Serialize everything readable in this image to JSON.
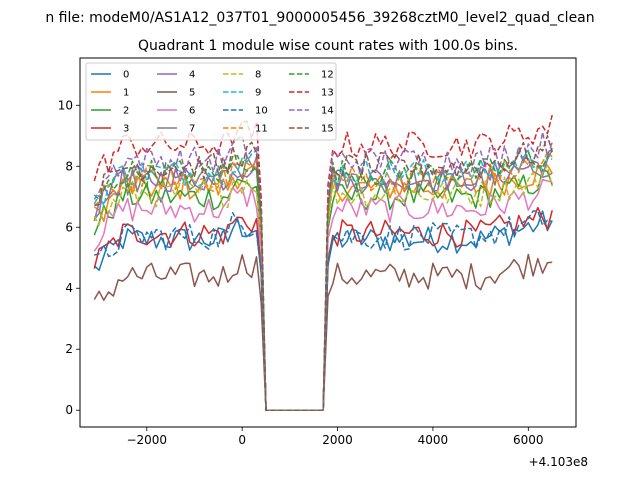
{
  "chart_data": {
    "type": "line",
    "suptitle": "n file: modeM0/AS1A12_037T01_9000005456_39268cztM0_level2_quad_clean",
    "title": "Quadrant 1 module wise count rates with 100.0s bins.",
    "xlabel": "",
    "ylabel": "",
    "x_offset_label": "+4.103e8",
    "xlim": [
      -3400,
      7000
    ],
    "ylim": [
      -0.55,
      11.55
    ],
    "xticks": [
      -2000,
      0,
      2000,
      4000,
      6000
    ],
    "xtick_labels": [
      "−2000",
      "0",
      "2000",
      "4000",
      "6000"
    ],
    "yticks": [
      0,
      2,
      4,
      6,
      8,
      10
    ],
    "ytick_labels": [
      "0",
      "2",
      "4",
      "6",
      "8",
      "10"
    ],
    "gap": {
      "drop_start": 400,
      "zero_start": 500,
      "zero_end": 1700,
      "rise_end": 1800
    },
    "x_start": -3100,
    "x_end": 6500,
    "x_step": 100,
    "legend_position": "upper-left",
    "legend_columns": 4,
    "series": [
      {
        "name": "0",
        "color": "#1f77b4",
        "style": "solid",
        "level": 5.6
      },
      {
        "name": "1",
        "color": "#ff7f0e",
        "style": "solid",
        "level": 7.3
      },
      {
        "name": "2",
        "color": "#2ca02c",
        "style": "solid",
        "level": 7.0
      },
      {
        "name": "3",
        "color": "#d62728",
        "style": "solid",
        "level": 5.8
      },
      {
        "name": "4",
        "color": "#9467bd",
        "style": "solid",
        "level": 7.6
      },
      {
        "name": "5",
        "color": "#8c564b",
        "style": "solid",
        "level": 4.4
      },
      {
        "name": "6",
        "color": "#e377c2",
        "style": "solid",
        "level": 6.6
      },
      {
        "name": "7",
        "color": "#7f7f7f",
        "style": "solid",
        "level": 7.5
      },
      {
        "name": "8",
        "color": "#bcbd22",
        "style": "dashed",
        "level": 7.1
      },
      {
        "name": "9",
        "color": "#17becf",
        "style": "dashed",
        "level": 7.8
      },
      {
        "name": "10",
        "color": "#1f77b4",
        "style": "dashed",
        "level": 5.7
      },
      {
        "name": "11",
        "color": "#ff7f0e",
        "style": "dashed",
        "level": 7.6
      },
      {
        "name": "12",
        "color": "#2ca02c",
        "style": "dashed",
        "level": 7.8
      },
      {
        "name": "13",
        "color": "#d62728",
        "style": "dashed",
        "level": 8.7
      },
      {
        "name": "14",
        "color": "#9467bd",
        "style": "dashed",
        "level": 8.2
      },
      {
        "name": "15",
        "color": "#8c564b",
        "style": "dashed",
        "level": 8.0
      }
    ]
  }
}
